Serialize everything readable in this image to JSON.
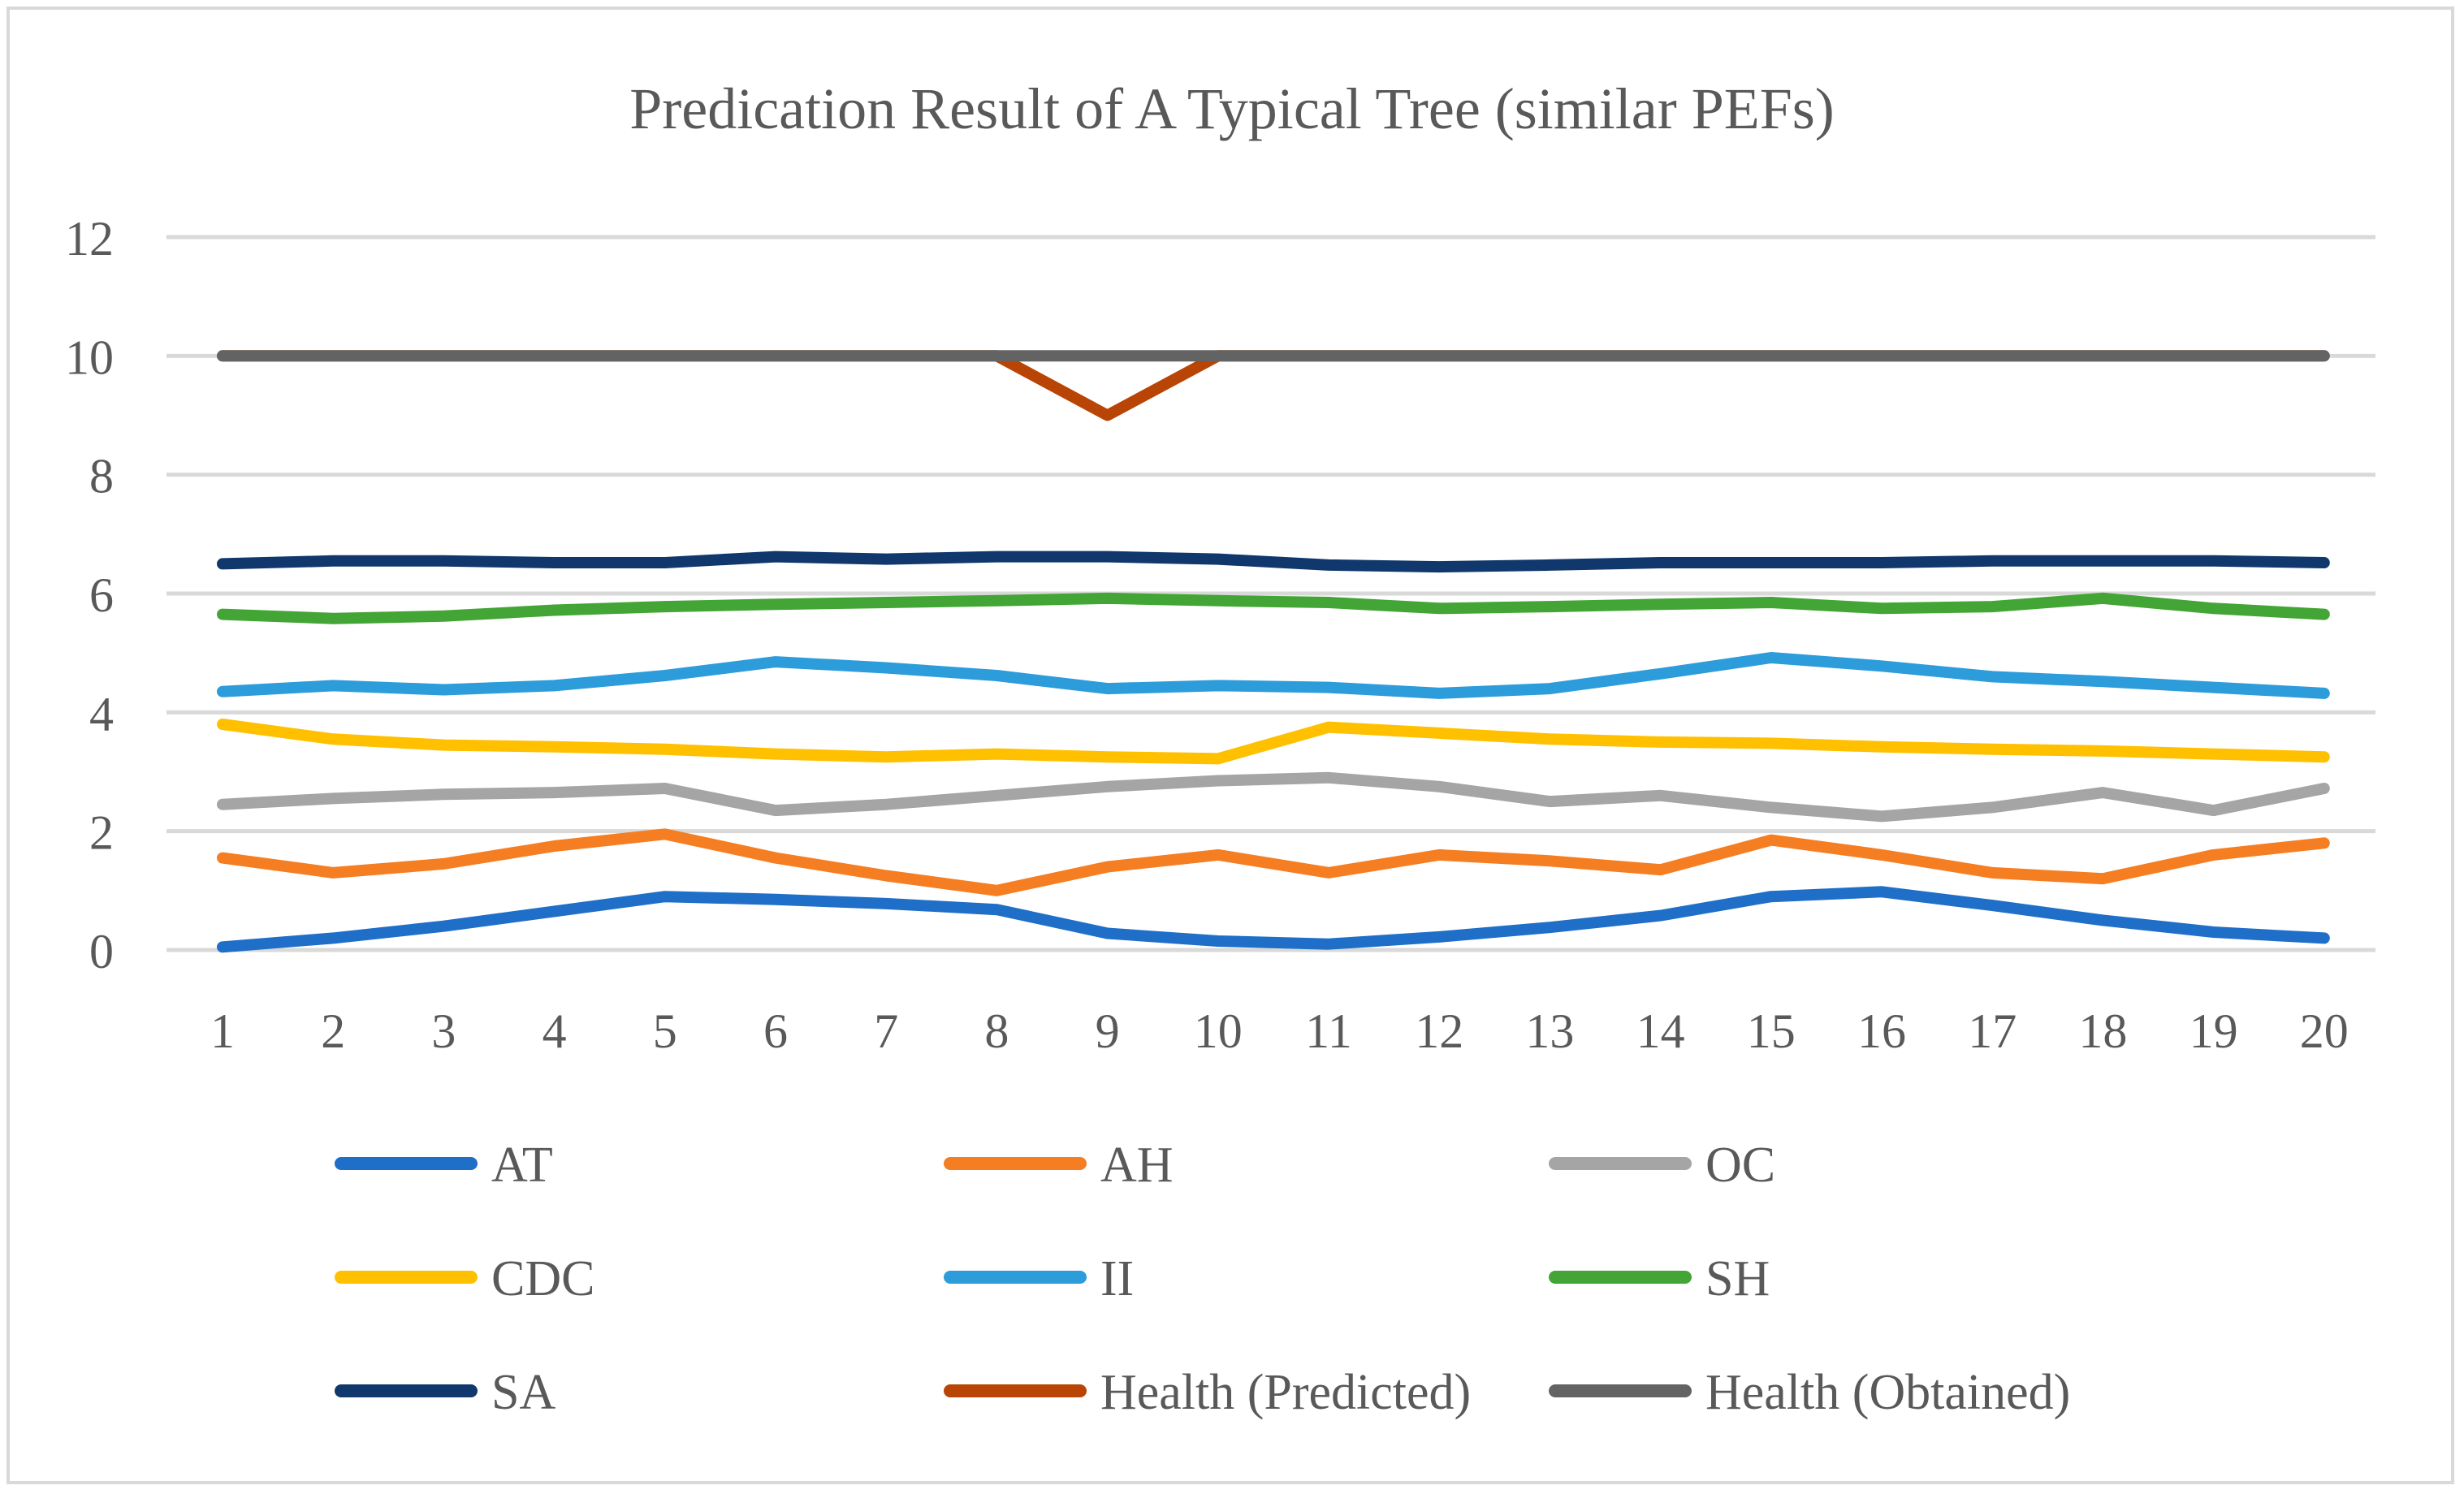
{
  "chart_data": {
    "type": "line",
    "title": "Predication Result of A Typical Tree (similar PEFs)",
    "xlabel": "",
    "ylabel": "",
    "ylim": [
      0,
      12
    ],
    "yticks": [
      0,
      2,
      4,
      6,
      8,
      10,
      12
    ],
    "grid": true,
    "legend_position": "bottom",
    "categories": [
      1,
      2,
      3,
      4,
      5,
      6,
      7,
      8,
      9,
      10,
      11,
      12,
      13,
      14,
      15,
      16,
      17,
      18,
      19,
      20
    ],
    "series": [
      {
        "name": "AT",
        "color": "#1f6fc8",
        "values": [
          0.05,
          0.2,
          0.4,
          0.65,
          0.9,
          0.85,
          0.78,
          0.68,
          0.28,
          0.15,
          0.1,
          0.22,
          0.38,
          0.58,
          0.9,
          0.98,
          0.75,
          0.5,
          0.3,
          0.2
        ]
      },
      {
        "name": "AH",
        "color": "#f57e23",
        "values": [
          1.55,
          1.3,
          1.45,
          1.75,
          1.95,
          1.55,
          1.25,
          1.0,
          1.4,
          1.6,
          1.3,
          1.6,
          1.5,
          1.35,
          1.85,
          1.6,
          1.3,
          1.2,
          1.6,
          1.8
        ]
      },
      {
        "name": "OC",
        "color": "#a5a5a5",
        "values": [
          2.45,
          2.55,
          2.62,
          2.65,
          2.72,
          2.35,
          2.45,
          2.6,
          2.75,
          2.85,
          2.9,
          2.75,
          2.5,
          2.6,
          2.4,
          2.25,
          2.4,
          2.65,
          2.35,
          2.72
        ]
      },
      {
        "name": "CDC",
        "color": "#ffc000",
        "values": [
          3.8,
          3.55,
          3.45,
          3.42,
          3.38,
          3.3,
          3.25,
          3.3,
          3.25,
          3.22,
          3.75,
          3.65,
          3.55,
          3.5,
          3.48,
          3.42,
          3.38,
          3.35,
          3.3,
          3.25
        ]
      },
      {
        "name": "II",
        "color": "#2d9cdb",
        "values": [
          4.35,
          4.45,
          4.38,
          4.45,
          4.62,
          4.85,
          4.75,
          4.62,
          4.4,
          4.45,
          4.42,
          4.32,
          4.4,
          4.65,
          4.92,
          4.78,
          4.6,
          4.52,
          4.42,
          4.32
        ]
      },
      {
        "name": "SH",
        "color": "#43a535",
        "values": [
          5.65,
          5.58,
          5.62,
          5.72,
          5.78,
          5.82,
          5.85,
          5.88,
          5.92,
          5.88,
          5.85,
          5.75,
          5.78,
          5.82,
          5.85,
          5.75,
          5.78,
          5.92,
          5.75,
          5.65
        ]
      },
      {
        "name": "SA",
        "color": "#10386c",
        "values": [
          6.5,
          6.55,
          6.55,
          6.52,
          6.52,
          6.62,
          6.58,
          6.62,
          6.62,
          6.58,
          6.48,
          6.45,
          6.48,
          6.52,
          6.52,
          6.52,
          6.55,
          6.55,
          6.55,
          6.52
        ]
      },
      {
        "name": "Health (Predicted)",
        "color": "#b84506",
        "values": [
          10,
          10,
          10,
          10,
          10,
          10,
          10,
          10,
          9,
          10,
          10,
          10,
          10,
          10,
          10,
          10,
          10,
          10,
          10,
          10
        ]
      },
      {
        "name": "Health (Obtained)",
        "color": "#636363",
        "values": [
          10,
          10,
          10,
          10,
          10,
          10,
          10,
          10,
          10,
          10,
          10,
          10,
          10,
          10,
          10,
          10,
          10,
          10,
          10,
          10
        ]
      }
    ]
  }
}
